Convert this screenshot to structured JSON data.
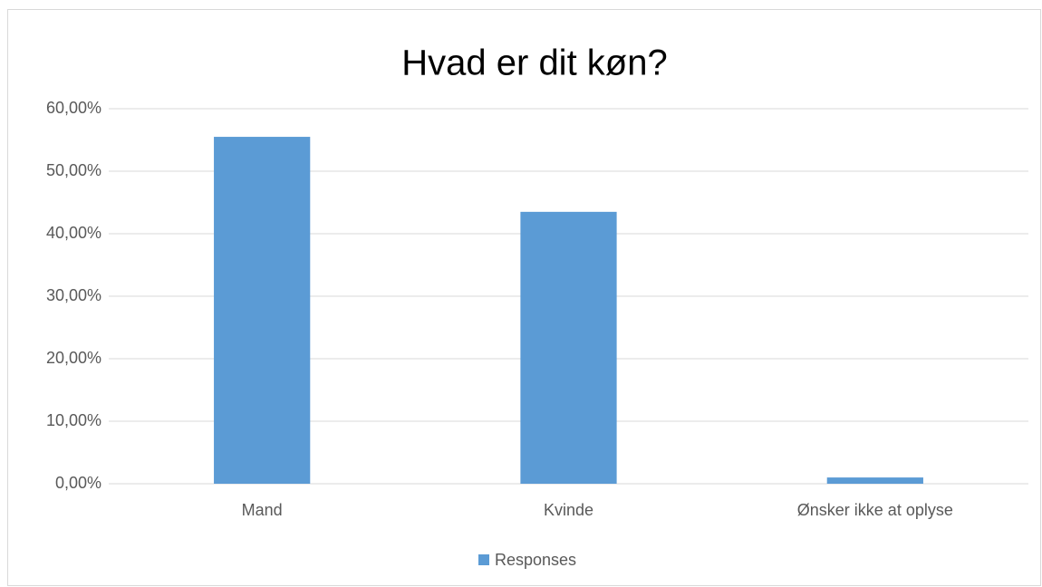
{
  "chart_data": {
    "type": "bar",
    "title": "Hvad er dit køn?",
    "categories": [
      "Mand",
      "Kvinde",
      "Ønsker ikke at oplyse"
    ],
    "series": [
      {
        "name": "Responses",
        "color": "#5b9bd5",
        "values": [
          55.5,
          43.5,
          1.0
        ]
      }
    ],
    "ylim": [
      0,
      60
    ],
    "yticks": [
      {
        "value": 0,
        "label": "0,00%"
      },
      {
        "value": 10,
        "label": "10,00%"
      },
      {
        "value": 20,
        "label": "20,00%"
      },
      {
        "value": 30,
        "label": "30,00%"
      },
      {
        "value": 40,
        "label": "40,00%"
      },
      {
        "value": 50,
        "label": "50,00%"
      },
      {
        "value": 60,
        "label": "60,00%"
      }
    ],
    "grid": true,
    "legend": "bottom"
  }
}
